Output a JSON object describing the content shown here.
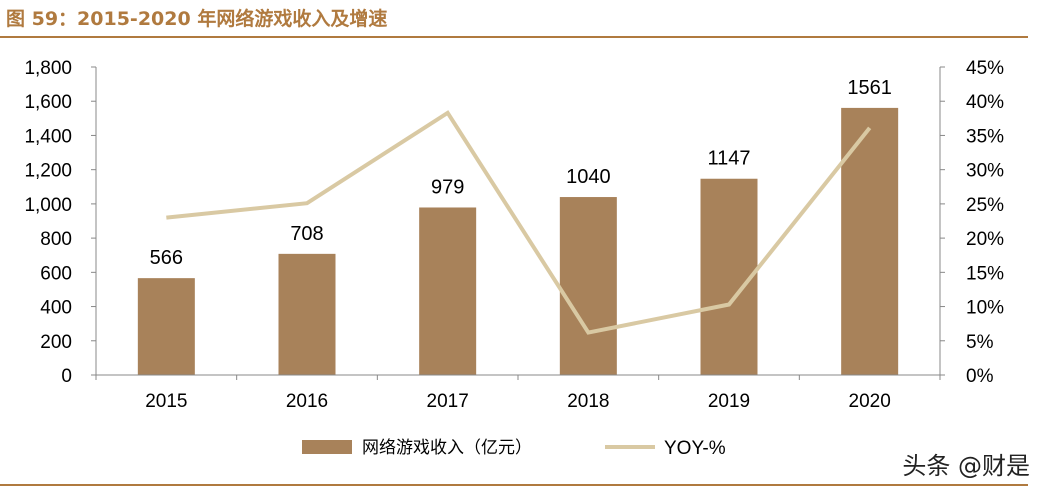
{
  "title": "图 59：2015-2020 年网络游戏收入及增速",
  "watermark": "头条 @财是",
  "colors": {
    "bar": "#a8825a",
    "line": "#d9c9a3",
    "title": "#b07a3f"
  },
  "chart_data": {
    "type": "bar+line",
    "categories": [
      "2015",
      "2016",
      "2017",
      "2018",
      "2019",
      "2020"
    ],
    "series": [
      {
        "name": "网络游戏收入（亿元）",
        "type": "bar",
        "axis": "left",
        "values": [
          566,
          708,
          979,
          1040,
          1147,
          1561
        ],
        "labels": [
          "566",
          "708",
          "979",
          "1040",
          "1147",
          "1561"
        ]
      },
      {
        "name": "YOY-%",
        "type": "line",
        "axis": "right",
        "values": [
          23.0,
          25.1,
          38.3,
          6.2,
          10.3,
          36.1
        ]
      }
    ],
    "y_left": {
      "min": 0,
      "max": 1800,
      "ticks": [
        "0",
        "200",
        "400",
        "600",
        "800",
        "1,000",
        "1,200",
        "1,400",
        "1,600",
        "1,800"
      ]
    },
    "y_right": {
      "min": 0,
      "max": 45,
      "ticks": [
        "0%",
        "5%",
        "10%",
        "15%",
        "20%",
        "25%",
        "30%",
        "35%",
        "40%",
        "45%"
      ]
    },
    "grid": false,
    "legend_position": "bottom"
  }
}
